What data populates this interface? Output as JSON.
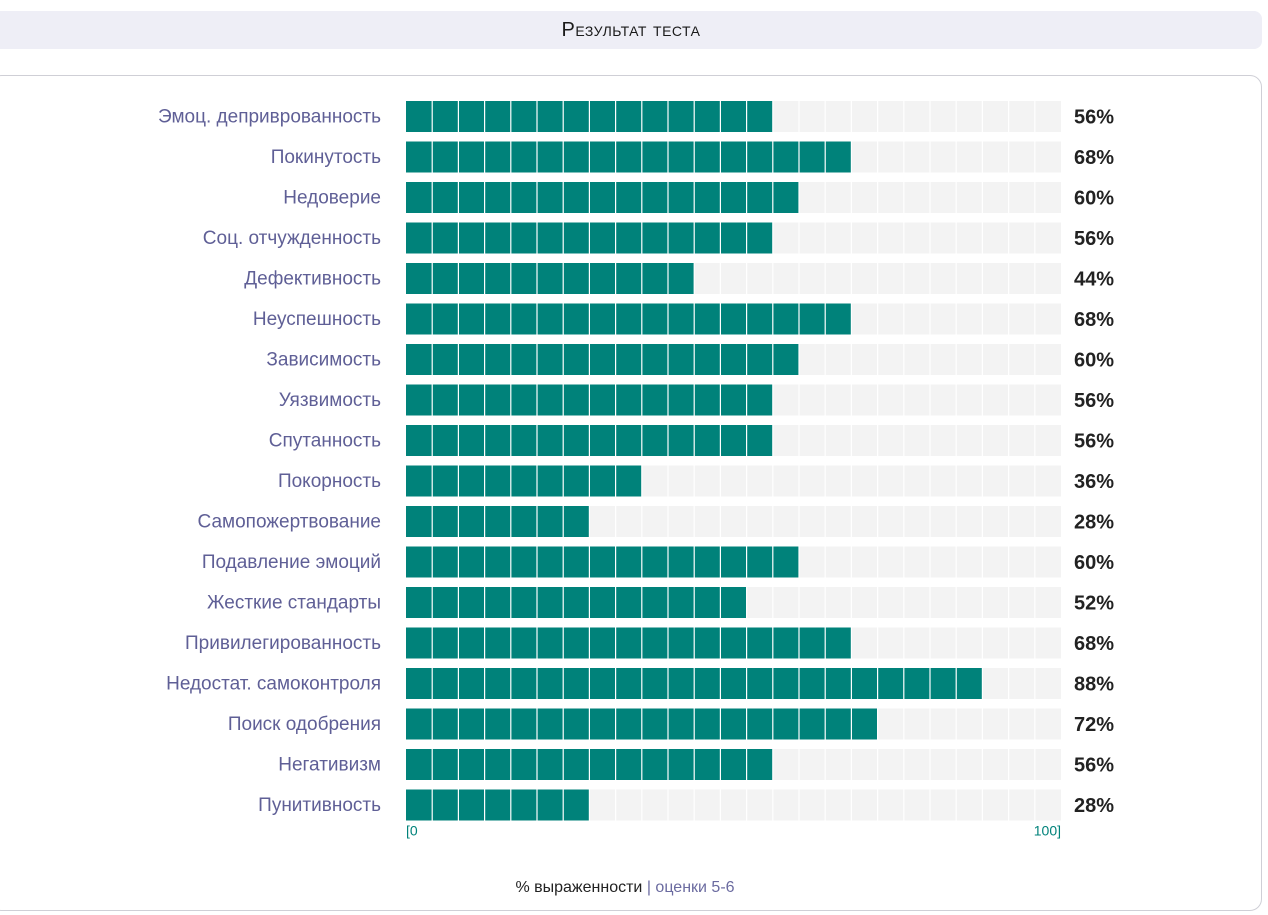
{
  "header": {
    "title": "Результат теста"
  },
  "legend": {
    "main": "% выраженности",
    "separator": "|",
    "sub": "оценки 5-6"
  },
  "colors": {
    "bar": "#00827a",
    "track": "#f3f3f3",
    "label": "#5f5f96",
    "value": "#222222",
    "axis": "#00827a"
  },
  "chart_data": {
    "type": "bar",
    "orientation": "horizontal",
    "segments": 25,
    "xlim": [
      0,
      100
    ],
    "x_tick_labels": [
      "[0",
      "100]"
    ],
    "categories": [
      "Эмоц. деприврованность",
      "Покинутость",
      "Недоверие",
      "Соц. отчужденность",
      "Дефективность",
      "Неуспешность",
      "Зависимость",
      "Уязвимость",
      "Спутанность",
      "Покорность",
      "Самопожертвование",
      "Подавление эмоций",
      "Жесткие стандарты",
      "Привилегированность",
      "Недостат. самоконтроля",
      "Поиск одобрения",
      "Негативизм",
      "Пунитивность"
    ],
    "values": [
      56,
      68,
      60,
      56,
      44,
      68,
      60,
      56,
      56,
      36,
      28,
      60,
      52,
      68,
      88,
      72,
      56,
      28
    ],
    "value_labels": [
      "56%",
      "68%",
      "60%",
      "56%",
      "44%",
      "68%",
      "60%",
      "56%",
      "56%",
      "36%",
      "28%",
      "60%",
      "52%",
      "68%",
      "88%",
      "72%",
      "56%",
      "28%"
    ]
  }
}
